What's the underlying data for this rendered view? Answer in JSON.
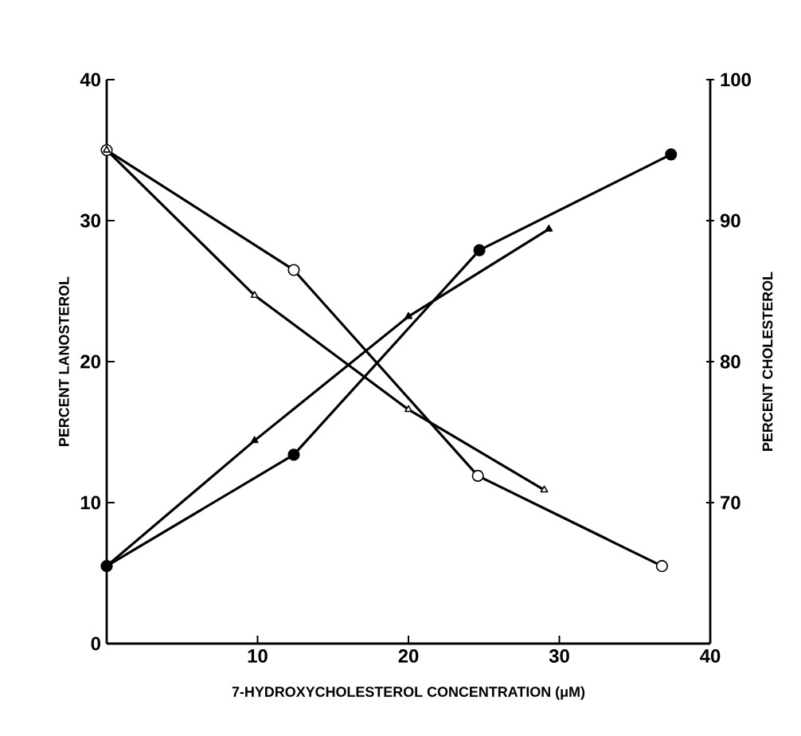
{
  "chart_data": {
    "type": "line",
    "xlabel": "7-HYDROXYCHOLESTEROL CONCENTRATION (μM)",
    "ylabel": "PERCENT LANOSTEROL",
    "y2label": "PERCENT CHOLESTEROL",
    "xlim": [
      0,
      40
    ],
    "xticks": [
      10,
      20,
      30,
      40
    ],
    "ylim": [
      0,
      40
    ],
    "yticks": [
      0,
      10,
      20,
      30,
      40
    ],
    "y2lim": [
      60,
      100
    ],
    "y2ticks": [
      70,
      80,
      90,
      100
    ],
    "grid": false,
    "legend": false,
    "series": [
      {
        "color": "#000000",
        "marker": "circle",
        "x": [
          0,
          12.4,
          24.6,
          36.8
        ],
        "values": [
          35.0,
          26.5,
          11.9,
          5.5
        ]
      },
      {
        "color": "#000000",
        "marker": "triangle",
        "x": [
          0,
          9.8,
          20,
          29
        ],
        "values": [
          35.0,
          24.7,
          16.6,
          10.9
        ]
      },
      {
        "color": "#000000",
        "marker": "circle",
        "axis": "y2",
        "x": [
          0,
          12.4,
          24.7,
          37.4
        ],
        "values": [
          65.5,
          73.4,
          87.9,
          94.7
        ]
      },
      {
        "color": "#000000",
        "marker": "triangle",
        "axis": "y2",
        "x": [
          0,
          9.8,
          20,
          29.3
        ],
        "values": [
          65.5,
          74.4,
          83.2,
          89.4
        ]
      }
    ]
  }
}
